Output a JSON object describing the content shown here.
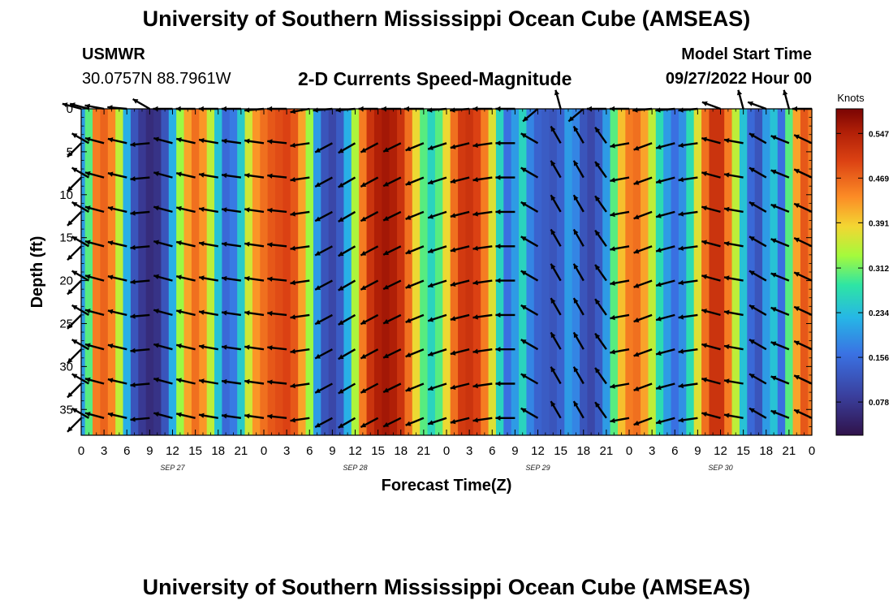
{
  "header": {
    "title": "University of Southern Mississippi Ocean Cube (AMSEAS)",
    "station_name": "USMWR",
    "coordinates": "30.0757N  88.7961W",
    "model_start_label": "Model Start Time",
    "model_start_value": "09/27/2022 Hour 00",
    "footer_title": "University of Southern Mississippi Ocean Cube (AMSEAS)"
  },
  "chart_data": {
    "type": "heatmap",
    "title": "2-D Currents Speed-Magnitude",
    "xlabel": "Forecast Time(Z)",
    "ylabel": "Depth (ft)",
    "colorbar_label": "Knots",
    "x_range_hours": [
      0,
      96
    ],
    "y_range_ft": [
      0,
      38
    ],
    "x_ticks_hours": [
      0,
      3,
      6,
      9,
      12,
      15,
      18,
      21,
      24,
      27,
      30,
      33,
      36,
      39,
      42,
      45,
      48,
      51,
      54,
      57,
      60,
      63,
      66,
      69,
      72,
      75,
      78,
      81,
      84,
      87,
      90,
      93,
      96
    ],
    "x_tick_labels": [
      "0",
      "3",
      "6",
      "9",
      "12",
      "15",
      "18",
      "21",
      "0",
      "3",
      "6",
      "9",
      "12",
      "15",
      "18",
      "21",
      "0",
      "3",
      "6",
      "9",
      "12",
      "15",
      "18",
      "21",
      "0",
      "3",
      "6",
      "9",
      "12",
      "15",
      "18",
      "21",
      "0"
    ],
    "y_ticks": [
      0,
      5,
      10,
      15,
      20,
      25,
      30,
      35
    ],
    "y_tick_labels": [
      "0",
      "5",
      "10",
      "15",
      "20",
      "25",
      "30",
      "35"
    ],
    "date_labels": [
      {
        "text": "SEP 27",
        "hour": 12
      },
      {
        "text": "SEP 28",
        "hour": 36
      },
      {
        "text": "SEP 29",
        "hour": 60
      },
      {
        "text": "SEP 30",
        "hour": 84
      }
    ],
    "colorbar_ticks": [
      0.078,
      0.156,
      0.234,
      0.312,
      0.391,
      0.469,
      0.547
    ],
    "colorbar_tick_labels": [
      "0.078",
      "0.156",
      "0.234",
      "0.312",
      "0.391",
      "0.469",
      "0.547"
    ],
    "color_range": [
      0.02,
      0.59
    ],
    "time_hours": [
      0,
      1,
      2,
      3,
      4,
      5,
      6,
      7,
      8,
      9,
      10,
      11,
      12,
      13,
      14,
      15,
      16,
      17,
      18,
      19,
      20,
      21,
      22,
      23,
      24,
      25,
      26,
      27,
      28,
      29,
      30,
      31,
      32,
      33,
      34,
      35,
      36,
      37,
      38,
      39,
      40,
      41,
      42,
      43,
      44,
      45,
      46,
      47,
      48,
      49,
      50,
      51,
      52,
      53,
      54,
      55,
      56,
      57,
      58,
      59,
      60,
      61,
      62,
      63,
      64,
      65,
      66,
      67,
      68,
      69,
      70,
      71,
      72,
      73,
      74,
      75,
      76,
      77,
      78,
      79,
      80,
      81,
      82,
      83,
      84,
      85,
      86,
      87,
      88,
      89,
      90,
      91,
      92,
      93,
      94,
      95,
      96
    ],
    "speed_knots": [
      0.2,
      0.3,
      0.45,
      0.47,
      0.44,
      0.35,
      0.22,
      0.12,
      0.08,
      0.06,
      0.07,
      0.12,
      0.22,
      0.33,
      0.42,
      0.46,
      0.43,
      0.35,
      0.24,
      0.15,
      0.17,
      0.25,
      0.36,
      0.43,
      0.46,
      0.48,
      0.49,
      0.5,
      0.48,
      0.42,
      0.33,
      0.2,
      0.12,
      0.1,
      0.13,
      0.22,
      0.34,
      0.45,
      0.52,
      0.55,
      0.56,
      0.55,
      0.52,
      0.46,
      0.38,
      0.3,
      0.26,
      0.3,
      0.38,
      0.46,
      0.51,
      0.52,
      0.5,
      0.45,
      0.37,
      0.26,
      0.16,
      0.2,
      0.26,
      0.18,
      0.14,
      0.13,
      0.12,
      0.14,
      0.2,
      0.18,
      0.12,
      0.1,
      0.13,
      0.2,
      0.3,
      0.4,
      0.45,
      0.46,
      0.42,
      0.35,
      0.27,
      0.2,
      0.16,
      0.19,
      0.27,
      0.37,
      0.46,
      0.52,
      0.52,
      0.45,
      0.35,
      0.24,
      0.15,
      0.12,
      0.2,
      0.24,
      0.16,
      0.3,
      0.42,
      0.48,
      0.45
    ],
    "depth_levels_ft": [
      0,
      4,
      8,
      12,
      16,
      20,
      24,
      28,
      32,
      36
    ],
    "vector_times_hours": [
      0,
      1,
      3,
      6,
      9,
      12,
      15,
      18,
      21,
      24,
      27,
      30,
      33,
      36,
      39,
      42,
      45,
      48,
      51,
      54,
      57,
      60,
      63,
      66,
      69,
      72,
      75,
      78,
      81,
      84,
      87,
      90,
      93,
      96
    ],
    "vector_direction_deg": [
      225,
      300,
      285,
      283,
      265,
      285,
      283,
      280,
      278,
      278,
      276,
      262,
      242,
      240,
      242,
      244,
      248,
      252,
      256,
      262,
      270,
      300,
      330,
      330,
      325,
      260,
      250,
      255,
      262,
      285,
      280,
      300,
      292,
      295
    ],
    "vector_surface_direction_deg": [
      285,
      285,
      280,
      275,
      300,
      270,
      270,
      270,
      270,
      265,
      270,
      260,
      265,
      265,
      270,
      270,
      270,
      265,
      265,
      270,
      270,
      230,
      345,
      230,
      270,
      270,
      265,
      265,
      265,
      290,
      345,
      290,
      345,
      270
    ]
  }
}
